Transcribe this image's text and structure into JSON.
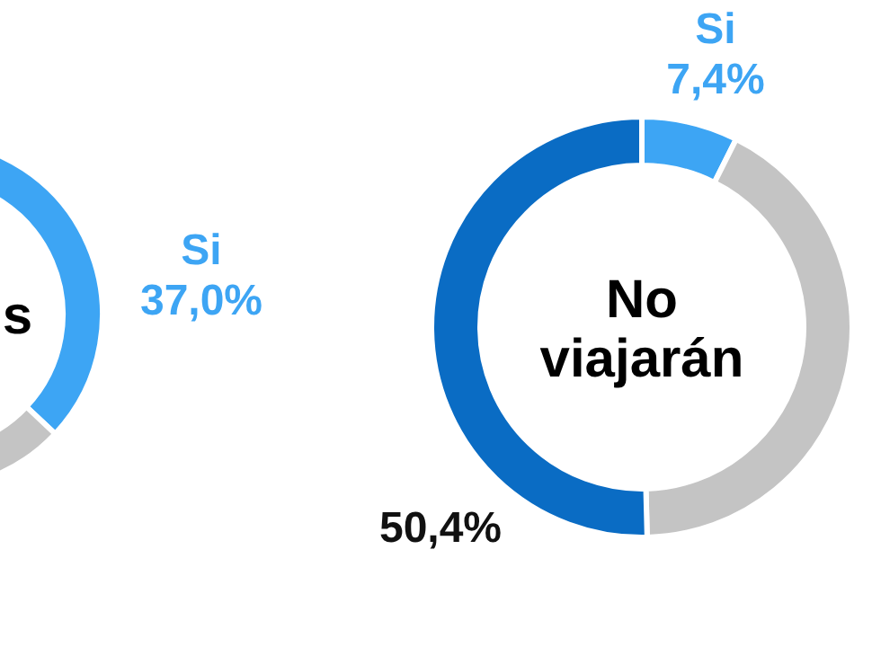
{
  "chart_data": [
    {
      "type": "donut",
      "title": "s",
      "categories": [
        "Si",
        null
      ],
      "values": [
        37.0,
        63.0
      ],
      "colors": [
        "#3da5f4",
        "#c4c4c4"
      ],
      "value_labels": [
        "37,0%",
        null
      ]
    },
    {
      "type": "donut",
      "title": "No viajarán",
      "categories": [
        "Si",
        null,
        null
      ],
      "values": [
        7.4,
        42.2,
        50.4
      ],
      "colors": [
        "#3da5f4",
        "#c4c4c4",
        "#0a6cc4"
      ],
      "value_labels": [
        "7,4%",
        null,
        "50,4%"
      ]
    }
  ]
}
